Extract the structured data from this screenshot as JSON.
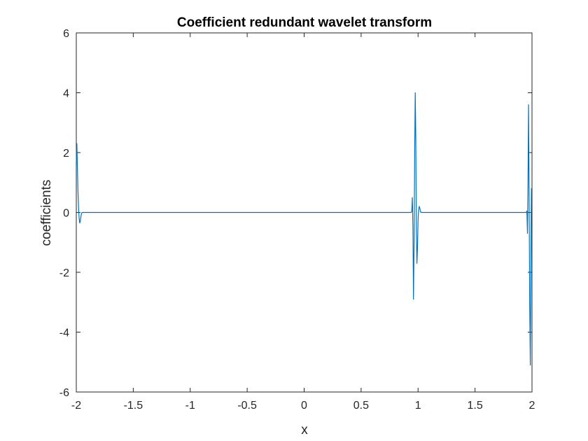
{
  "chart_data": {
    "type": "line",
    "title": "Coefficient redundant wavelet transform",
    "xlabel": "x",
    "ylabel": "coefficients",
    "xlim": [
      -2,
      2
    ],
    "ylim": [
      -6,
      6
    ],
    "xticks": [
      -2,
      -1.5,
      -1,
      -0.5,
      0,
      0.5,
      1,
      1.5,
      2
    ],
    "xtick_labels": [
      "-2",
      "-1.5",
      "-1",
      "-0.5",
      "0",
      "0.5",
      "1",
      "1.5",
      "2"
    ],
    "yticks": [
      6,
      4,
      2,
      0,
      -2,
      -4,
      -6
    ],
    "ytick_labels": [
      "6",
      "4",
      "2",
      "0",
      "-2",
      "-4",
      "-6"
    ],
    "grid": false,
    "box": true,
    "series": [
      {
        "color": "#0072BD",
        "x": [
          -2.0,
          -1.995,
          -1.99,
          -1.985,
          -1.98,
          -1.975,
          -1.97,
          -1.965,
          -1.96,
          -1.955,
          -1.95,
          -1.94,
          -1.93,
          -1.9,
          -1.5,
          -1.0,
          -0.5,
          0.0,
          0.5,
          0.9,
          0.93,
          0.94,
          0.945,
          0.95,
          0.955,
          0.96,
          0.965,
          0.97,
          0.975,
          0.98,
          0.985,
          0.99,
          0.995,
          1.0,
          1.005,
          1.01,
          1.015,
          1.02,
          1.025,
          1.03,
          1.035,
          1.04,
          1.045,
          1.05,
          1.055,
          1.06,
          1.07,
          1.08,
          1.1,
          1.5,
          1.9,
          1.93,
          1.94,
          1.945,
          1.95,
          1.955,
          1.96,
          1.965,
          1.97,
          1.975,
          1.98,
          1.985,
          1.99,
          1.995,
          2.0
        ],
        "y": [
          1.7,
          2.3,
          1.5,
          0.7,
          0.1,
          -0.2,
          -0.35,
          -0.3,
          -0.15,
          -0.05,
          0.0,
          0.0,
          0.0,
          0.0,
          0.0,
          0.0,
          0.0,
          0.0,
          0.0,
          0.0,
          0.0,
          0.0,
          0.05,
          0.5,
          -0.5,
          -2.9,
          -1.0,
          2.0,
          4.0,
          2.5,
          -0.5,
          -1.7,
          -1.2,
          -0.2,
          0.1,
          0.2,
          0.15,
          0.05,
          0.0,
          0.0,
          0.0,
          0.0,
          0.0,
          0.0,
          0.0,
          0.0,
          0.0,
          0.0,
          0.0,
          0.0,
          0.0,
          0.0,
          0.0,
          0.0,
          0.0,
          0.05,
          -0.7,
          1.0,
          3.6,
          0.5,
          -3.0,
          -5.1,
          -2.0,
          0.8,
          0.8
        ]
      }
    ]
  }
}
